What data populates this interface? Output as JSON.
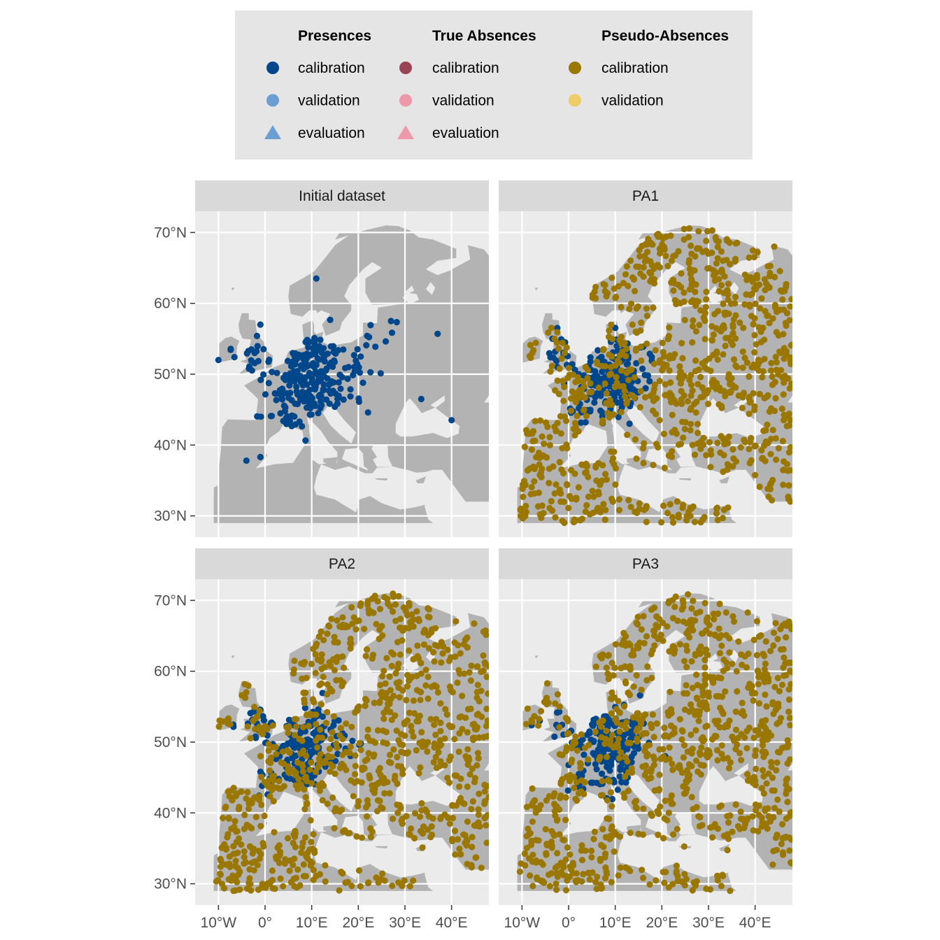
{
  "legend": {
    "groups": [
      {
        "title": "Presences",
        "items": [
          {
            "label": "calibration",
            "shape": "circle",
            "color": "#00468b"
          },
          {
            "label": "validation",
            "shape": "circle",
            "color": "#6b9fd3"
          },
          {
            "label": "evaluation",
            "shape": "triangle",
            "color": "#6b9fd3"
          }
        ]
      },
      {
        "title": "True Absences",
        "items": [
          {
            "label": "calibration",
            "shape": "circle",
            "color": "#994455"
          },
          {
            "label": "validation",
            "shape": "circle",
            "color": "#ee99aa"
          },
          {
            "label": "evaluation",
            "shape": "triangle",
            "color": "#ee99aa"
          }
        ]
      },
      {
        "title": "Pseudo-Absences",
        "items": [
          {
            "label": "calibration",
            "shape": "circle",
            "color": "#997700"
          },
          {
            "label": "validation",
            "shape": "circle",
            "color": "#eecc66"
          }
        ]
      }
    ]
  },
  "chart_data": [
    {
      "type": "scatter",
      "title": "Initial dataset",
      "xlim": [
        -15,
        48
      ],
      "ylim": [
        27,
        73
      ],
      "x_ticks": [
        "10°W",
        "0°",
        "10°E",
        "20°E",
        "30°E",
        "40°E"
      ],
      "y_ticks": [
        "30°N",
        "40°N",
        "50°N",
        "60°N",
        "70°N"
      ],
      "series": [
        {
          "name": "Presences calibration",
          "color": "#00468b",
          "count": 260,
          "seed": 11,
          "clusters": [
            [
              10,
              50,
              4.5,
              3.0,
              0.72
            ],
            [
              -3,
              52,
              3.0,
              1.8,
              0.12
            ],
            [
              5,
              45,
              4.0,
              1.5,
              0.1
            ],
            [
              20,
              55,
              5.0,
              3.0,
              0.06
            ]
          ],
          "points": [
            [
              -4,
              37.8
            ],
            [
              -1,
              38.3
            ],
            [
              11,
              63.5
            ],
            [
              37,
              55.7
            ],
            [
              40,
              43.5
            ],
            [
              33.5,
              46.5
            ],
            [
              27,
              57.5
            ],
            [
              21,
              48.8
            ],
            [
              -10,
              52
            ],
            [
              -1,
              57
            ]
          ]
        }
      ]
    },
    {
      "type": "scatter",
      "title": "PA1",
      "xlim": [
        -15,
        48
      ],
      "ylim": [
        27,
        73
      ],
      "x_ticks": [
        "10°W",
        "0°",
        "10°E",
        "20°E",
        "30°E",
        "40°E"
      ],
      "y_ticks": [
        "30°N",
        "40°N",
        "50°N",
        "60°N",
        "70°N"
      ],
      "series": [
        {
          "name": "Presences calibration",
          "color": "#00468b",
          "count": 200,
          "seed": 21,
          "clusters": [
            [
              9,
              50,
              4.0,
              2.8,
              0.75
            ],
            [
              -3,
              52,
              3.0,
              1.8,
              0.15
            ],
            [
              5,
              45,
              4.0,
              1.5,
              0.1
            ]
          ]
        },
        {
          "name": "Pseudo-Absences calibration",
          "color": "#997700",
          "count": 900,
          "seed": 22,
          "uniform": true
        }
      ]
    },
    {
      "type": "scatter",
      "title": "PA2",
      "xlim": [
        -15,
        48
      ],
      "ylim": [
        27,
        73
      ],
      "x_ticks": [
        "10°W",
        "0°",
        "10°E",
        "20°E",
        "30°E",
        "40°E"
      ],
      "y_ticks": [
        "30°N",
        "40°N",
        "50°N",
        "60°N",
        "70°N"
      ],
      "series": [
        {
          "name": "Presences calibration",
          "color": "#00468b",
          "count": 200,
          "seed": 31,
          "clusters": [
            [
              9,
              50,
              4.0,
              2.8,
              0.75
            ],
            [
              -3,
              52,
              3.0,
              1.8,
              0.15
            ],
            [
              5,
              45,
              4.0,
              1.5,
              0.1
            ]
          ]
        },
        {
          "name": "Pseudo-Absences calibration",
          "color": "#997700",
          "count": 900,
          "seed": 32,
          "uniform": true
        }
      ]
    },
    {
      "type": "scatter",
      "title": "PA3",
      "xlim": [
        -15,
        48
      ],
      "ylim": [
        27,
        73
      ],
      "x_ticks": [
        "10°W",
        "0°",
        "10°E",
        "20°E",
        "30°E",
        "40°E"
      ],
      "y_ticks": [
        "30°N",
        "40°N",
        "50°N",
        "60°N",
        "70°N"
      ],
      "series": [
        {
          "name": "Presences calibration",
          "color": "#00468b",
          "count": 200,
          "seed": 41,
          "clusters": [
            [
              9,
              50,
              4.0,
              2.8,
              0.75
            ],
            [
              -3,
              52,
              3.0,
              1.8,
              0.15
            ],
            [
              5,
              45,
              4.0,
              1.5,
              0.1
            ]
          ]
        },
        {
          "name": "Pseudo-Absences calibration",
          "color": "#997700",
          "count": 900,
          "seed": 42,
          "uniform": true
        }
      ]
    }
  ]
}
